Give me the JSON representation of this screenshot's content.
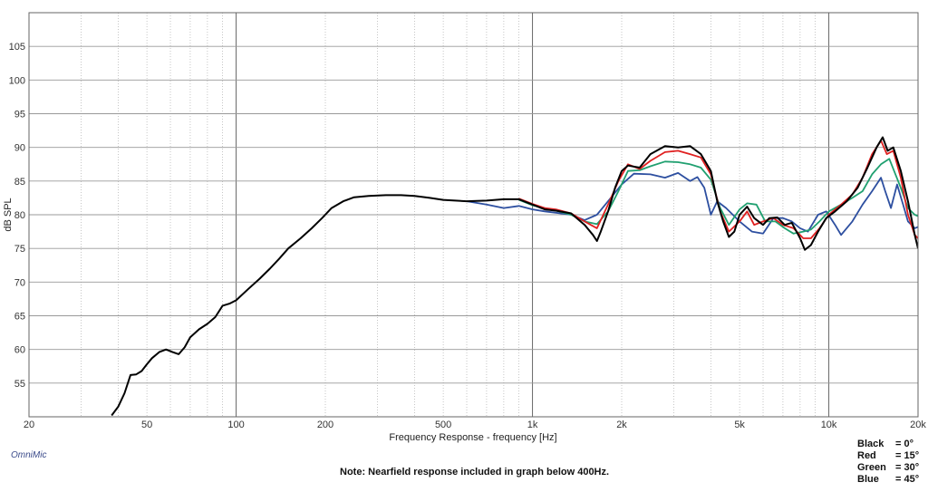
{
  "chart_data": {
    "type": "line",
    "title": "",
    "xlabel": "Frequency Response - frequency [Hz]",
    "ylabel": "dB SPL",
    "x_scale": "log",
    "xlim": [
      20,
      20000
    ],
    "ylim": [
      50,
      110
    ],
    "x_tick_values": [
      20,
      50,
      100,
      200,
      500,
      1000,
      2000,
      5000,
      10000,
      20000
    ],
    "x_tick_labels": [
      "20",
      "50",
      "100",
      "200",
      "500",
      "1k",
      "2k",
      "5k",
      "10k",
      "20k"
    ],
    "y_tick_values": [
      55,
      60,
      65,
      70,
      75,
      80,
      85,
      90,
      95,
      100,
      105
    ],
    "y_tick_labels": [
      "55",
      "60",
      "65",
      "70",
      "75",
      "80",
      "85",
      "90",
      "95",
      "100",
      "105"
    ],
    "grid": true,
    "series": [
      {
        "name": "Black",
        "color": "#000000",
        "points": [
          [
            38,
            50.2
          ],
          [
            40,
            51.5
          ],
          [
            42,
            53.5
          ],
          [
            44,
            56.2
          ],
          [
            46,
            56.3
          ],
          [
            48,
            56.8
          ],
          [
            50,
            57.8
          ],
          [
            52,
            58.7
          ],
          [
            55,
            59.6
          ],
          [
            58,
            60.0
          ],
          [
            61,
            59.6
          ],
          [
            64,
            59.3
          ],
          [
            67,
            60.3
          ],
          [
            70,
            61.8
          ],
          [
            75,
            63.0
          ],
          [
            80,
            63.8
          ],
          [
            85,
            64.8
          ],
          [
            90,
            66.5
          ],
          [
            95,
            66.8
          ],
          [
            100,
            67.3
          ],
          [
            110,
            69.0
          ],
          [
            120,
            70.5
          ],
          [
            130,
            72.0
          ],
          [
            140,
            73.5
          ],
          [
            150,
            75.0
          ],
          [
            165,
            76.5
          ],
          [
            180,
            78.0
          ],
          [
            195,
            79.5
          ],
          [
            210,
            81.0
          ],
          [
            230,
            82.0
          ],
          [
            250,
            82.6
          ],
          [
            280,
            82.8
          ],
          [
            320,
            82.9
          ],
          [
            360,
            82.9
          ],
          [
            400,
            82.8
          ],
          [
            450,
            82.5
          ],
          [
            500,
            82.2
          ],
          [
            600,
            82.0
          ],
          [
            700,
            82.1
          ],
          [
            800,
            82.3
          ],
          [
            900,
            82.3
          ],
          [
            1000,
            81.5
          ],
          [
            1100,
            80.8
          ],
          [
            1200,
            80.6
          ],
          [
            1350,
            80.2
          ],
          [
            1500,
            78.5
          ],
          [
            1600,
            77.0
          ],
          [
            1650,
            76.1
          ],
          [
            1700,
            77.5
          ],
          [
            1800,
            80.5
          ],
          [
            1900,
            84.0
          ],
          [
            2000,
            86.5
          ],
          [
            2100,
            87.3
          ],
          [
            2300,
            87.0
          ],
          [
            2500,
            89.0
          ],
          [
            2800,
            90.2
          ],
          [
            3100,
            90.0
          ],
          [
            3400,
            90.2
          ],
          [
            3700,
            89.0
          ],
          [
            4000,
            86.5
          ],
          [
            4200,
            82.0
          ],
          [
            4400,
            79.0
          ],
          [
            4600,
            76.7
          ],
          [
            4800,
            77.5
          ],
          [
            5000,
            80.0
          ],
          [
            5300,
            81.2
          ],
          [
            5600,
            79.5
          ],
          [
            6000,
            78.5
          ],
          [
            6300,
            79.5
          ],
          [
            6700,
            79.6
          ],
          [
            7100,
            78.5
          ],
          [
            7500,
            78.8
          ],
          [
            8000,
            76.5
          ],
          [
            8300,
            74.8
          ],
          [
            8700,
            75.5
          ],
          [
            9200,
            77.5
          ],
          [
            9800,
            79.5
          ],
          [
            10500,
            80.5
          ],
          [
            11500,
            82.0
          ],
          [
            12500,
            84.0
          ],
          [
            13500,
            87.0
          ],
          [
            14500,
            90.0
          ],
          [
            15200,
            91.5
          ],
          [
            15800,
            89.5
          ],
          [
            16500,
            90.0
          ],
          [
            17500,
            86.5
          ],
          [
            18500,
            82.0
          ],
          [
            19500,
            77.0
          ],
          [
            20000,
            75.0
          ]
        ]
      },
      {
        "name": "Red",
        "color": "#e02020",
        "points": [
          [
            900,
            82.4
          ],
          [
            1000,
            81.6
          ],
          [
            1100,
            81.0
          ],
          [
            1200,
            80.8
          ],
          [
            1350,
            80.2
          ],
          [
            1500,
            79.0
          ],
          [
            1650,
            78.0
          ],
          [
            1800,
            81.5
          ],
          [
            1950,
            85.0
          ],
          [
            2100,
            87.5
          ],
          [
            2300,
            86.8
          ],
          [
            2500,
            88.0
          ],
          [
            2800,
            89.3
          ],
          [
            3100,
            89.5
          ],
          [
            3400,
            89.0
          ],
          [
            3700,
            88.5
          ],
          [
            4000,
            86.0
          ],
          [
            4300,
            80.5
          ],
          [
            4600,
            77.5
          ],
          [
            5000,
            79.0
          ],
          [
            5300,
            80.5
          ],
          [
            5600,
            78.5
          ],
          [
            6000,
            79.0
          ],
          [
            6500,
            79.5
          ],
          [
            7000,
            78.5
          ],
          [
            7600,
            78.0
          ],
          [
            8200,
            76.5
          ],
          [
            8700,
            76.5
          ],
          [
            9300,
            78.0
          ],
          [
            10000,
            80.0
          ],
          [
            11000,
            81.5
          ],
          [
            12000,
            83.0
          ],
          [
            13000,
            85.5
          ],
          [
            14000,
            89.0
          ],
          [
            15000,
            91.0
          ],
          [
            15700,
            89.0
          ],
          [
            16500,
            89.5
          ],
          [
            17500,
            85.5
          ],
          [
            18500,
            80.0
          ],
          [
            19500,
            77.0
          ],
          [
            20000,
            76.5
          ]
        ]
      },
      {
        "name": "Green",
        "color": "#20a070",
        "points": [
          [
            900,
            82.2
          ],
          [
            1000,
            81.4
          ],
          [
            1100,
            81.0
          ],
          [
            1200,
            80.6
          ],
          [
            1350,
            80.0
          ],
          [
            1500,
            79.0
          ],
          [
            1650,
            78.6
          ],
          [
            1800,
            80.5
          ],
          [
            1950,
            83.5
          ],
          [
            2100,
            86.5
          ],
          [
            2300,
            86.6
          ],
          [
            2500,
            87.2
          ],
          [
            2800,
            87.9
          ],
          [
            3100,
            87.8
          ],
          [
            3400,
            87.5
          ],
          [
            3700,
            87.0
          ],
          [
            4000,
            85.2
          ],
          [
            4300,
            81.0
          ],
          [
            4600,
            78.5
          ],
          [
            5000,
            80.8
          ],
          [
            5300,
            81.7
          ],
          [
            5700,
            81.5
          ],
          [
            6100,
            79.0
          ],
          [
            6600,
            79.0
          ],
          [
            7100,
            78.0
          ],
          [
            7600,
            77.2
          ],
          [
            8200,
            77.5
          ],
          [
            8700,
            77.8
          ],
          [
            9300,
            79.0
          ],
          [
            10000,
            80.5
          ],
          [
            11000,
            81.5
          ],
          [
            12000,
            82.5
          ],
          [
            13000,
            83.5
          ],
          [
            14000,
            86.0
          ],
          [
            15000,
            87.5
          ],
          [
            16000,
            88.3
          ],
          [
            17500,
            84.0
          ],
          [
            18500,
            81.0
          ],
          [
            19500,
            80.0
          ],
          [
            20000,
            79.8
          ]
        ]
      },
      {
        "name": "Blue",
        "color": "#2d4fa0",
        "points": [
          [
            600,
            82.0
          ],
          [
            700,
            81.5
          ],
          [
            800,
            81.0
          ],
          [
            900,
            81.3
          ],
          [
            1000,
            80.8
          ],
          [
            1100,
            80.5
          ],
          [
            1200,
            80.3
          ],
          [
            1350,
            80.0
          ],
          [
            1500,
            79.2
          ],
          [
            1650,
            80.0
          ],
          [
            1800,
            82.0
          ],
          [
            2000,
            84.5
          ],
          [
            2200,
            86.1
          ],
          [
            2500,
            86.0
          ],
          [
            2800,
            85.5
          ],
          [
            3100,
            86.2
          ],
          [
            3400,
            85.0
          ],
          [
            3600,
            85.6
          ],
          [
            3800,
            84.0
          ],
          [
            4000,
            80.0
          ],
          [
            4200,
            82.0
          ],
          [
            4500,
            81.0
          ],
          [
            5000,
            79.0
          ],
          [
            5500,
            77.5
          ],
          [
            6000,
            77.2
          ],
          [
            6500,
            79.5
          ],
          [
            7000,
            79.5
          ],
          [
            7500,
            79.0
          ],
          [
            8000,
            78.0
          ],
          [
            8500,
            77.5
          ],
          [
            9200,
            80.0
          ],
          [
            9800,
            80.5
          ],
          [
            10500,
            78.5
          ],
          [
            11000,
            77.0
          ],
          [
            12000,
            79.0
          ],
          [
            13000,
            81.5
          ],
          [
            14000,
            83.5
          ],
          [
            15000,
            85.5
          ],
          [
            15500,
            83.5
          ],
          [
            16200,
            81.0
          ],
          [
            17000,
            84.5
          ],
          [
            17800,
            81.5
          ],
          [
            18500,
            79.0
          ],
          [
            19500,
            78.0
          ],
          [
            20000,
            78.2
          ]
        ]
      }
    ]
  },
  "omni_label": "OmniMic",
  "note": "Note: Nearfield response included in graph below 400Hz.",
  "legend": [
    {
      "name": "Black",
      "value": "= 0°"
    },
    {
      "name": "Red",
      "value": "= 15°"
    },
    {
      "name": "Green",
      "value": "= 30°"
    },
    {
      "name": "Blue",
      "value": "= 45°"
    }
  ]
}
